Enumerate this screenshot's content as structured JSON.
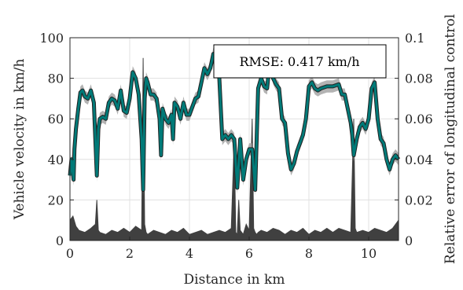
{
  "chart_data": {
    "type": "line",
    "title": "",
    "xlabel": "Distance in km",
    "ylabel_left": "Vehicle velocity in km/h",
    "ylabel_right": "Relative error of longitudinal control",
    "xlim": [
      0,
      11
    ],
    "ylim_left": [
      0,
      100
    ],
    "ylim_right": [
      0,
      0.1
    ],
    "x_ticks": [
      "0",
      "2",
      "4",
      "6",
      "8",
      "10"
    ],
    "y_ticks_left": [
      "0",
      "20",
      "40",
      "60",
      "80",
      "100"
    ],
    "y_ticks_right": [
      "0",
      "0.02",
      "0.04",
      "0.06",
      "0.08",
      "0.1"
    ],
    "grid": true,
    "annotation": "RMSE: 0.417 km/h",
    "colors": {
      "velocity": "#007a78",
      "velocity_outline": "#222222",
      "band": "#9a9a9a",
      "error": "#404040"
    },
    "series": [
      {
        "axis": "left",
        "x": [
          0,
          0.05,
          0.12,
          0.15,
          0.2,
          0.28,
          0.35,
          0.42,
          0.5,
          0.6,
          0.7,
          0.8,
          0.85,
          0.9,
          0.95,
          1.0,
          1.1,
          1.2,
          1.3,
          1.4,
          1.5,
          1.6,
          1.7,
          1.8,
          1.9,
          2.0,
          2.1,
          2.2,
          2.3,
          2.4,
          2.45,
          2.5,
          2.55,
          2.6,
          2.7,
          2.8,
          2.9,
          3.0,
          3.05,
          3.1,
          3.2,
          3.3,
          3.4,
          3.45,
          3.5,
          3.6,
          3.7,
          3.8,
          3.9,
          4.0,
          4.1,
          4.2,
          4.3,
          4.4,
          4.5,
          4.6,
          4.7,
          4.8,
          4.9,
          5.0,
          5.1,
          5.2,
          5.3,
          5.4,
          5.5,
          5.6,
          5.7,
          5.8,
          5.9,
          6.0,
          6.1,
          6.2,
          6.3,
          6.4,
          6.5,
          6.6,
          6.7,
          6.8,
          6.9,
          7.0,
          7.1,
          7.2,
          7.3,
          7.4,
          7.5,
          7.6,
          7.7,
          7.8,
          7.9,
          8.0,
          8.1,
          8.2,
          8.3,
          8.4,
          8.6,
          8.8,
          9.0,
          9.1,
          9.2,
          9.3,
          9.4,
          9.45,
          9.5,
          9.6,
          9.7,
          9.8,
          9.9,
          10.0,
          10.1,
          10.2,
          10.3,
          10.4,
          10.5,
          10.6,
          10.7,
          10.8,
          10.9,
          11.0
        ],
        "y": [
          32,
          40,
          30,
          45,
          55,
          65,
          73,
          74,
          71,
          70,
          74,
          68,
          50,
          32,
          55,
          60,
          61,
          60,
          68,
          70,
          69,
          65,
          74,
          64,
          63,
          70,
          83,
          80,
          72,
          50,
          25,
          70,
          80,
          78,
          72,
          72,
          70,
          60,
          42,
          65,
          60,
          58,
          62,
          50,
          68,
          66,
          60,
          68,
          62,
          62,
          66,
          70,
          71,
          78,
          85,
          82,
          85,
          92,
          88,
          80,
          50,
          52,
          50,
          52,
          50,
          26,
          50,
          30,
          40,
          45,
          45,
          25,
          75,
          80,
          76,
          75,
          90,
          80,
          77,
          75,
          60,
          58,
          43,
          35,
          38,
          44,
          48,
          52,
          60,
          76,
          78,
          75,
          74,
          75,
          76,
          76,
          77,
          72,
          72,
          65,
          58,
          52,
          42,
          50,
          56,
          58,
          55,
          60,
          75,
          78,
          60,
          50,
          48,
          40,
          35,
          40,
          42,
          40
        ]
      },
      {
        "axis": "right",
        "x": [
          0,
          0.1,
          0.2,
          0.3,
          0.5,
          0.7,
          0.85,
          0.9,
          0.95,
          1.0,
          1.2,
          1.4,
          1.6,
          1.8,
          2.0,
          2.2,
          2.4,
          2.45,
          2.5,
          2.55,
          2.6,
          2.8,
          3.0,
          3.2,
          3.4,
          3.6,
          3.8,
          4.0,
          4.2,
          4.4,
          4.6,
          4.8,
          5.0,
          5.2,
          5.4,
          5.5,
          5.55,
          5.6,
          5.65,
          5.7,
          5.75,
          5.8,
          5.9,
          6.0,
          6.1,
          6.15,
          6.2,
          6.25,
          6.3,
          6.4,
          6.6,
          6.8,
          7.0,
          7.2,
          7.4,
          7.6,
          7.8,
          8.0,
          8.2,
          8.4,
          8.6,
          8.8,
          9.0,
          9.2,
          9.4,
          9.5,
          9.55,
          9.6,
          9.8,
          10.0,
          10.2,
          10.4,
          10.6,
          10.8,
          11.0
        ],
        "y": [
          0.01,
          0.012,
          0.007,
          0.005,
          0.004,
          0.006,
          0.008,
          0.02,
          0.005,
          0.004,
          0.003,
          0.005,
          0.004,
          0.006,
          0.004,
          0.007,
          0.005,
          0.09,
          0.008,
          0.004,
          0.003,
          0.005,
          0.004,
          0.003,
          0.005,
          0.004,
          0.006,
          0.003,
          0.004,
          0.005,
          0.003,
          0.004,
          0.005,
          0.004,
          0.006,
          0.05,
          0.004,
          0.003,
          0.02,
          0.005,
          0.004,
          0.003,
          0.008,
          0.005,
          0.06,
          0.006,
          0.004,
          0.003,
          0.004,
          0.005,
          0.004,
          0.006,
          0.005,
          0.003,
          0.005,
          0.004,
          0.006,
          0.003,
          0.005,
          0.004,
          0.006,
          0.004,
          0.006,
          0.005,
          0.004,
          0.06,
          0.006,
          0.004,
          0.005,
          0.004,
          0.006,
          0.005,
          0.004,
          0.006,
          0.01
        ]
      }
    ]
  }
}
